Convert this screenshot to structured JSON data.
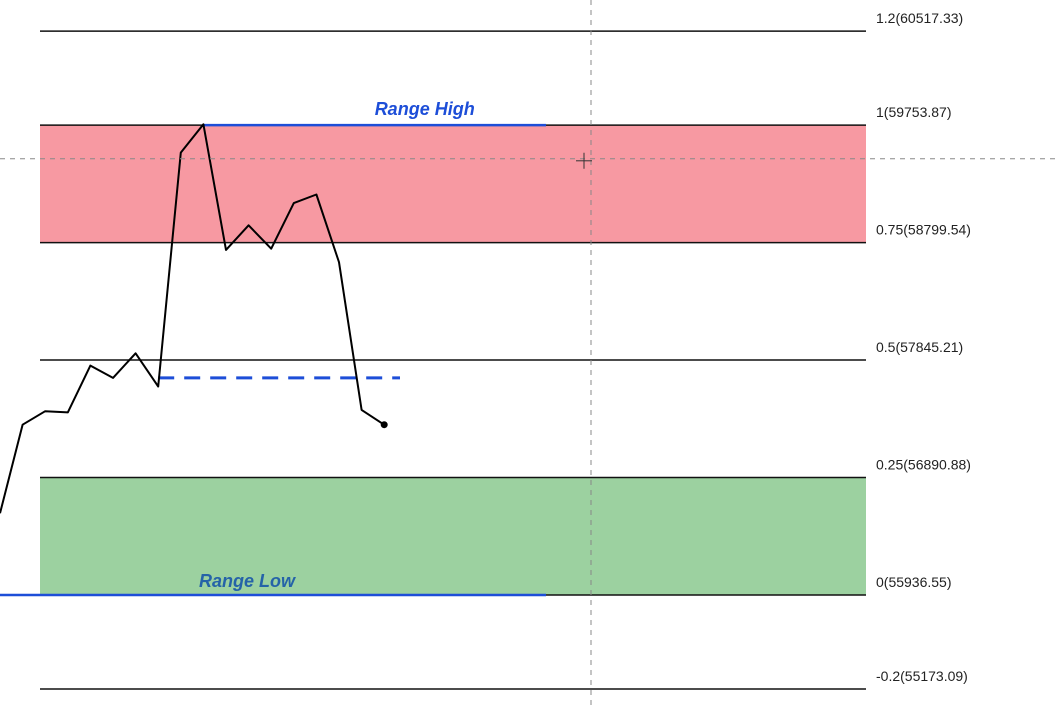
{
  "chart_data": {
    "type": "line",
    "ylim": [
      55035,
      60770
    ],
    "x_count": 17,
    "price_series": {
      "values": [
        56600,
        57320,
        57430,
        57420,
        57800,
        57700,
        57900,
        57630,
        59530,
        59760,
        58740,
        58940,
        58750,
        59120,
        59190,
        58640,
        57440,
        57320
      ]
    },
    "fib_levels": [
      {
        "ratio": 1.2,
        "price": 60517.33,
        "label": "1.2(60517.33)"
      },
      {
        "ratio": 1,
        "price": 59753.87,
        "label": "1(59753.87)"
      },
      {
        "ratio": 0.75,
        "price": 58799.54,
        "label": "0.75(58799.54)"
      },
      {
        "ratio": 0.5,
        "price": 57845.21,
        "label": "0.5(57845.21)"
      },
      {
        "ratio": 0.25,
        "price": 56890.88,
        "label": "0.25(56890.88)"
      },
      {
        "ratio": 0,
        "price": 55936.55,
        "label": "0(55936.55)"
      },
      {
        "ratio": -0.2,
        "price": 55173.09,
        "label": "-0.2(55173.09)"
      }
    ],
    "zones": [
      {
        "name": "premium",
        "from_price": 58799.54,
        "to_price": 59753.87,
        "color": "#f4727e"
      },
      {
        "name": "discount",
        "from_price": 55936.55,
        "to_price": 56890.88,
        "color": "#76bf7b"
      }
    ],
    "range_high": {
      "label": "Range High",
      "price": 59753.87,
      "color": "#1d4ed8"
    },
    "range_low": {
      "label": "Range Low",
      "price": 55936.55,
      "color": "#2563a8"
    },
    "midline_marker": {
      "price": 57700,
      "color": "#1d4ed8"
    },
    "crosshair": {
      "price": 59480
    },
    "colors": {
      "line": "#000000",
      "grid": "#888888"
    }
  }
}
